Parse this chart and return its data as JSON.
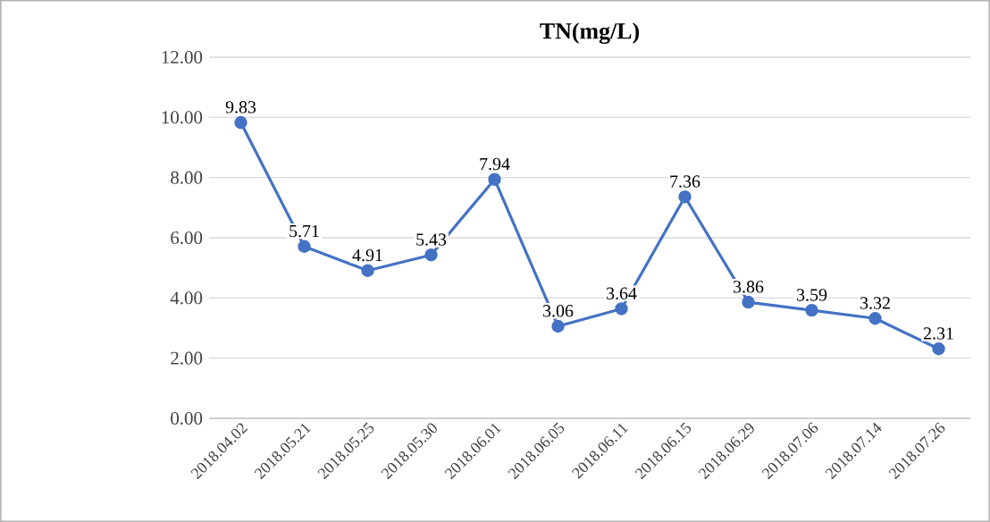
{
  "chart_data": {
    "type": "line",
    "title": "TN(mg/L)",
    "categories": [
      "2018.04.02",
      "2018.05.21",
      "2018.05.25",
      "2018.05.30",
      "2018.06.01",
      "2018.06.05",
      "2018.06.11",
      "2018.06.15",
      "2018.06.29",
      "2018.07.06",
      "2018.07.14",
      "2018.07.26"
    ],
    "values": [
      9.83,
      5.71,
      4.91,
      5.43,
      7.94,
      3.06,
      3.64,
      7.36,
      3.86,
      3.59,
      3.32,
      2.31
    ],
    "color": "#4472c4",
    "marker": "circle",
    "line_style": "solid",
    "data_labels": true,
    "grid": "y",
    "ylim": [
      0,
      12
    ],
    "yticks": [
      {
        "value": 0,
        "label": "0.00"
      },
      {
        "value": 2,
        "label": "2.00"
      },
      {
        "value": 4,
        "label": "4.00"
      },
      {
        "value": 6,
        "label": "6.00"
      },
      {
        "value": 8,
        "label": "8.00"
      },
      {
        "value": 10,
        "label": "10.00"
      },
      {
        "value": 12,
        "label": "12.00"
      }
    ]
  }
}
